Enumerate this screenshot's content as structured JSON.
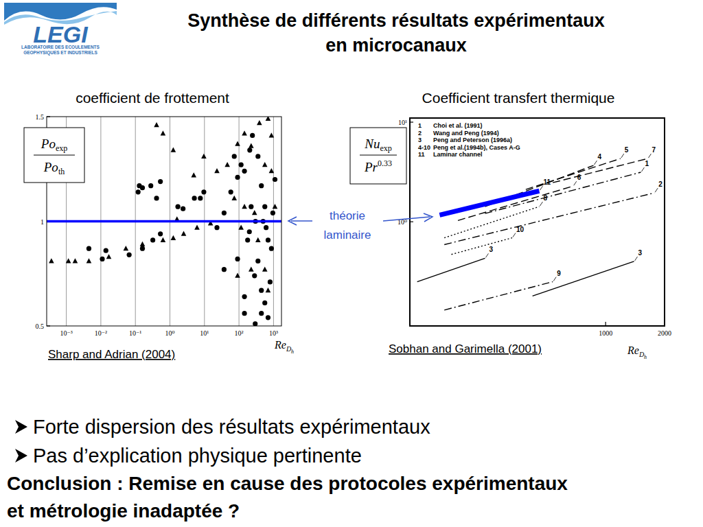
{
  "header": {
    "logo": {
      "text": "LEGI",
      "subtitle": [
        "LABORATOIRE DES ECOULEMENTS",
        "GEOPHYSIQUES ET INDUSTRIELS"
      ]
    },
    "title": [
      "Synthèse de différents résultats expérimentaux",
      "en microcanaux"
    ]
  },
  "chart_data": [
    {
      "type": "scatter",
      "title": "coefficient de frottement",
      "source": "Sharp and Adrian (2004)",
      "xlabel": {
        "text": "Re",
        "sub": "D",
        "subsub": "h"
      },
      "ylabel": {
        "numerator": {
          "text": "Po",
          "sub": "exp"
        },
        "denominator": {
          "text": "Po",
          "sub": "th"
        }
      },
      "log": "x",
      "grid": true,
      "xlim": [
        0.00027,
        1700
      ],
      "xticks": [
        {
          "value": 0.001,
          "label": "10⁻³"
        },
        {
          "value": 0.01,
          "label": "10⁻²"
        },
        {
          "value": 0.1,
          "label": "10⁻¹"
        },
        {
          "value": 1,
          "label": "10⁰"
        },
        {
          "value": 10,
          "label": "10¹"
        },
        {
          "value": 100,
          "label": "10²"
        },
        {
          "value": 1000,
          "label": "10³"
        }
      ],
      "ylim": [
        0.5,
        1.5
      ],
      "yticks": [
        0.5,
        1,
        1.5
      ],
      "series": [
        {
          "marker": "circle",
          "color": "#000000",
          "x": [
            0.13,
            0.12,
            0.16,
            0.28,
            0.41,
            0.53,
            1.7,
            2.4,
            5.1,
            7.6,
            9.6,
            0.014,
            0.011,
            0.0045,
            0.066,
            0.16,
            0.32,
            0.53,
            23,
            37,
            58,
            91,
            115,
            144,
            205,
            245,
            355,
            445,
            560,
            610,
            695,
            355,
            282,
            144,
            37,
            445,
            560,
            795,
            870,
            955,
            225,
            178,
            295,
            144,
            695,
            73,
            445,
            91,
            1100,
            500,
            300,
            200
          ],
          "values": [
            1.17,
            1.14,
            1.16,
            1.17,
            1.11,
            1.19,
            1.07,
            1.06,
            1.11,
            1.11,
            1.14,
            0.86,
            0.82,
            0.87,
            0.84,
            0.87,
            0.91,
            0.94,
            0.97,
            1.04,
            1.14,
            1.21,
            1.27,
            1.24,
            1.34,
            1.41,
            1.31,
            1.17,
            1.07,
            0.97,
            0.91,
            0.81,
            0.74,
            0.64,
            0.77,
            0.67,
            0.61,
            0.71,
            0.87,
            1.04,
            1.07,
            0.91,
            0.51,
            0.56,
            0.54,
            1.31,
            0.56,
            0.82,
            1.2,
            1.0,
            1.0,
            0.95
          ]
        },
        {
          "marker": "triangle",
          "color": "#000000",
          "x": [
            0.41,
            0.63,
            1.25,
            4.9,
            9.6,
            1.6,
            0.0018,
            0.00037,
            0.00115,
            0.0045,
            0.017,
            0.053,
            0.16,
            0.63,
            1.25,
            2.5,
            6.1,
            15,
            23,
            46,
            91,
            144,
            225,
            390,
            695,
            870,
            560,
            73,
            144,
            282,
            355,
            115,
            560,
            225,
            91,
            870,
            1100,
            695
          ],
          "values": [
            1.46,
            1.42,
            1.34,
            1.22,
            1.31,
            1.01,
            0.81,
            0.81,
            0.81,
            0.81,
            0.83,
            0.87,
            0.89,
            0.91,
            0.92,
            0.94,
            0.97,
            0.99,
            1.24,
            1.27,
            1.37,
            1.42,
            1.36,
            1.47,
            1.49,
            1.41,
            1.27,
            1.11,
            1.07,
            1.04,
            0.91,
            0.97,
            0.77,
            0.77,
            0.74,
            1.24,
            1.07,
            0.67
          ]
        },
        {
          "type": "line",
          "line_style": "solid",
          "color": "#0000ff",
          "x": [
            0.00027,
            1700
          ],
          "values": [
            1,
            1
          ]
        }
      ]
    },
    {
      "type": "line",
      "title": "Coefficient transfert thermique",
      "source": "Sobhan and Garimella (2001)",
      "xlabel": {
        "text": "Re",
        "sub": "D",
        "subsub": "h"
      },
      "ylabel": {
        "numerator": {
          "text": "Nu",
          "sub": "exp"
        },
        "denominator": {
          "text": "Pr",
          "sup": "0.33"
        }
      },
      "log": true,
      "grid": false,
      "xlim": [
        100,
        2000
      ],
      "xticks": [
        1000,
        2000
      ],
      "ylim": [
        0.09,
        11
      ],
      "yticks": [
        {
          "value": 1,
          "label": "10⁰"
        },
        {
          "value": 10,
          "label": "10¹"
        }
      ],
      "legend": "upper left",
      "legend_items": [
        {
          "number": "1",
          "text": "Choi et al. (1991)"
        },
        {
          "number": "2",
          "text": "Wang and Peng (1994)"
        },
        {
          "number": "3",
          "text": "Peng and Peterson (1996a)"
        },
        {
          "number": "4-10",
          "text": "Peng et al.(1994b), Cases A-G"
        },
        {
          "number": "11",
          "text": "Laminar channel"
        }
      ],
      "series": [
        {
          "name": "1",
          "line_style": "dashdot",
          "color": "#000000",
          "x": [
            242,
            1513
          ],
          "values": [
            1.21,
            3.14
          ]
        },
        {
          "name": "2",
          "line_style": "dashdot",
          "color": "#000000",
          "x": [
            150,
            1775
          ],
          "values": [
            0.59,
            1.95
          ]
        },
        {
          "name": "3",
          "line_style": "solid",
          "color": "#000000",
          "x": [
            109,
            242
          ],
          "values": [
            0.25,
            0.43
          ]
        },
        {
          "name": "3",
          "line_style": "solid",
          "color": "#000000",
          "x": [
            423,
            1397
          ],
          "values": [
            0.18,
            0.4
          ]
        },
        {
          "name": "4",
          "line_style": "dashed",
          "color": "#000000",
          "x": [
            242,
            867
          ],
          "values": [
            1.42,
            3.68
          ]
        },
        {
          "name": "5",
          "line_style": "dashed",
          "color": "#000000",
          "x": [
            391,
            1191
          ],
          "values": [
            2.11,
            4.31
          ]
        },
        {
          "name": "6",
          "line_style": "dashed",
          "color": "#000000",
          "x": [
            176,
            682
          ],
          "values": [
            1.03,
            2.28
          ]
        },
        {
          "name": "7",
          "line_style": "dashed",
          "color": "#000000",
          "x": [
            537,
            1640
          ],
          "values": [
            2.47,
            4.31
          ]
        },
        {
          "name": "8",
          "line_style": "dotted",
          "color": "#000000",
          "x": [
            150,
            458
          ],
          "values": [
            0.69,
            1.42
          ]
        },
        {
          "name": "9",
          "line_style": "dashdot",
          "color": "#000000",
          "x": [
            150,
            537
          ],
          "values": [
            0.13,
            0.25
          ]
        },
        {
          "name": "10",
          "line_style": "dotted",
          "color": "#000000",
          "x": [
            163,
            333
          ],
          "values": [
            0.47,
            0.69
          ]
        },
        {
          "name": "11",
          "line_style": "solid",
          "color": "#0000ff",
          "x": [
            142,
            458
          ],
          "values": [
            1.17,
            2.04
          ]
        }
      ]
    }
  ],
  "shared_annotation": {
    "text": [
      "théorie",
      "laminaire"
    ],
    "color": "#3355cc"
  },
  "bullets": [
    "Forte dispersion des résultats expérimentaux",
    "Pas d’explication physique pertinente"
  ],
  "conclusion": [
    "Conclusion : Remise en cause des protocoles expérimentaux",
    "et métrologie inadaptée ?"
  ]
}
